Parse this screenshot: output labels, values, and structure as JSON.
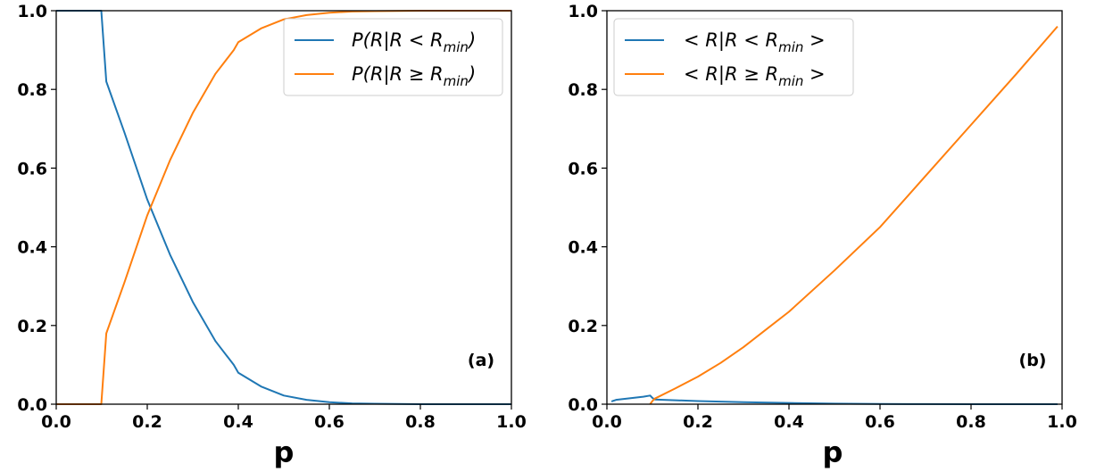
{
  "chart_data": [
    {
      "type": "line",
      "panel_label": "(a)",
      "xlabel": "p",
      "ylabel": "",
      "xlim": [
        0.0,
        1.0
      ],
      "ylim": [
        0.0,
        1.0
      ],
      "xticks": [
        "0.0",
        "0.2",
        "0.4",
        "0.6",
        "0.8",
        "1.0"
      ],
      "yticks": [
        "0.0",
        "0.2",
        "0.4",
        "0.6",
        "0.8",
        "1.0"
      ],
      "grid": false,
      "legend_placement": "top-right",
      "series": [
        {
          "name": "P(R|R < R_min)",
          "color": "#1f77b4",
          "x": [
            0.0,
            0.09,
            0.099,
            0.11,
            0.15,
            0.2,
            0.25,
            0.3,
            0.35,
            0.39,
            0.4,
            0.45,
            0.5,
            0.55,
            0.6,
            0.65,
            0.7,
            0.8,
            0.9,
            1.0
          ],
          "y": [
            1.0,
            1.0,
            1.0,
            0.82,
            0.69,
            0.52,
            0.38,
            0.26,
            0.16,
            0.1,
            0.08,
            0.045,
            0.022,
            0.011,
            0.005,
            0.002,
            0.001,
            0.0,
            0.0,
            0.0
          ]
        },
        {
          "name": "P(R|R ≥ R_min)",
          "color": "#ff7f0e",
          "x": [
            0.0,
            0.09,
            0.099,
            0.11,
            0.15,
            0.2,
            0.25,
            0.3,
            0.35,
            0.39,
            0.4,
            0.45,
            0.5,
            0.55,
            0.6,
            0.65,
            0.7,
            0.8,
            0.9,
            1.0
          ],
          "y": [
            0.0,
            0.0,
            0.0,
            0.18,
            0.31,
            0.48,
            0.62,
            0.74,
            0.84,
            0.9,
            0.92,
            0.955,
            0.978,
            0.989,
            0.995,
            0.998,
            0.999,
            1.0,
            1.0,
            1.0
          ]
        }
      ]
    },
    {
      "type": "line",
      "panel_label": "(b)",
      "xlabel": "p",
      "ylabel": "",
      "xlim": [
        0.0,
        1.0
      ],
      "ylim": [
        0.0,
        1.0
      ],
      "xticks": [
        "0.0",
        "0.2",
        "0.4",
        "0.6",
        "0.8",
        "1.0"
      ],
      "yticks": [
        "0.0",
        "0.2",
        "0.4",
        "0.6",
        "0.8",
        "1.0"
      ],
      "grid": false,
      "legend_placement": "top-left",
      "series": [
        {
          "name": "< R|R < R_min >",
          "color": "#1f77b4",
          "x": [
            0.01,
            0.02,
            0.05,
            0.08,
            0.095,
            0.1,
            0.105,
            0.15,
            0.2,
            0.3,
            0.4,
            0.5,
            0.6,
            0.7,
            0.8,
            0.9,
            0.99
          ],
          "y": [
            0.007,
            0.011,
            0.015,
            0.019,
            0.022,
            0.016,
            0.012,
            0.01,
            0.008,
            0.005,
            0.003,
            0.0015,
            0.0005,
            0.0002,
            0.0,
            0.0,
            0.0
          ]
        },
        {
          "name": "< R|R ≥ R_min >",
          "color": "#ff7f0e",
          "x": [
            0.095,
            0.1,
            0.105,
            0.15,
            0.2,
            0.25,
            0.3,
            0.35,
            0.4,
            0.5,
            0.6,
            0.7,
            0.8,
            0.9,
            0.99
          ],
          "y": [
            0.0,
            0.008,
            0.014,
            0.04,
            0.07,
            0.105,
            0.145,
            0.19,
            0.235,
            0.34,
            0.45,
            0.58,
            0.71,
            0.84,
            0.96
          ]
        }
      ]
    }
  ]
}
